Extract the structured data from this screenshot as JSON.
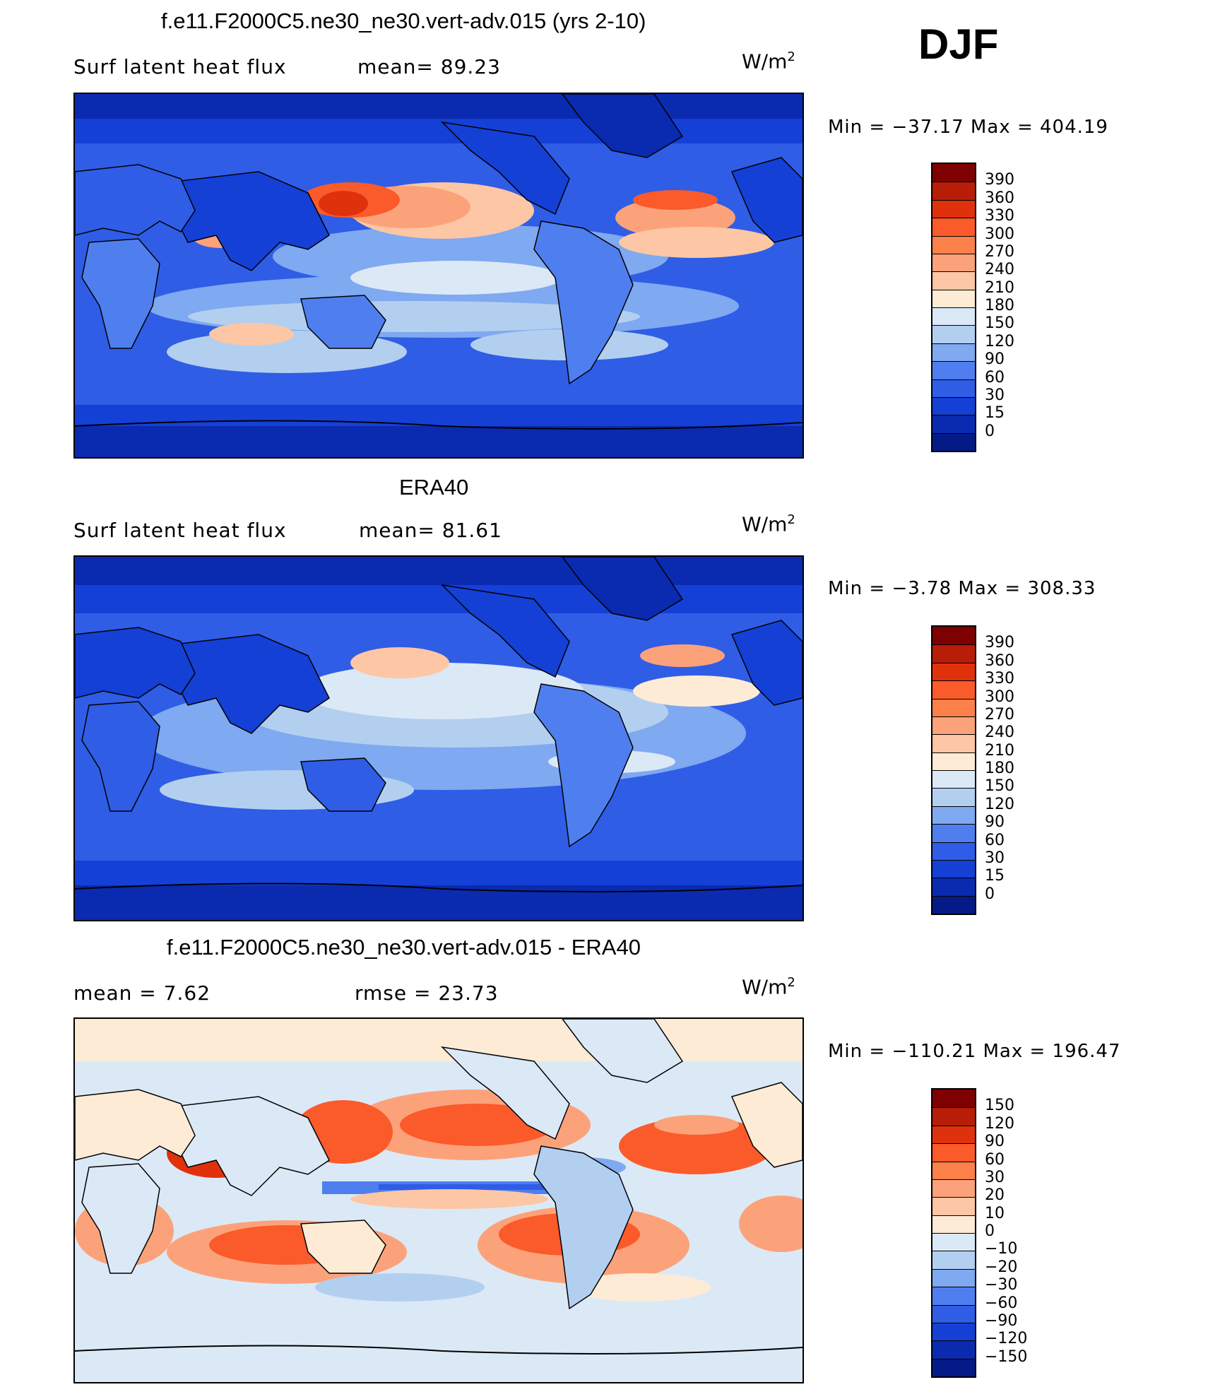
{
  "season": "DJF",
  "panels": [
    {
      "id": "model",
      "title": "f.e11.F2000C5.ne30_ne30.vert-adv.015 (yrs 2-10)",
      "left_text": "Surf latent heat flux",
      "middle_text": "mean=  89.23",
      "units_base": "W/m",
      "units_exp": "2",
      "minmax": "Min = −37.17 Max = 404.19",
      "colorbar_labels": [
        "390",
        "360",
        "330",
        "300",
        "270",
        "240",
        "210",
        "180",
        "150",
        "120",
        "90",
        "60",
        "30",
        "15",
        "0"
      ],
      "colorbar_colors": [
        "#7f0000",
        "#b81d08",
        "#e0310d",
        "#fb5a2a",
        "#fc8049",
        "#fca27a",
        "#fdc6a4",
        "#feebd6",
        "#dbe9f6",
        "#b3cff0",
        "#7fa9f0",
        "#4f7fef",
        "#2f5de6",
        "#1440d6",
        "#0a2ab0",
        "#041a86"
      ],
      "mean_value": 89.23,
      "min_value": -37.17,
      "max_value": 404.19
    },
    {
      "id": "obs",
      "title": "ERA40",
      "left_text": "Surf latent heat flux",
      "middle_text": "mean=  81.61",
      "units_base": "W/m",
      "units_exp": "2",
      "minmax": "Min =  −3.78 Max = 308.33",
      "colorbar_labels": [
        "390",
        "360",
        "330",
        "300",
        "270",
        "240",
        "210",
        "180",
        "150",
        "120",
        "90",
        "60",
        "30",
        "15",
        "0"
      ],
      "colorbar_colors": [
        "#7f0000",
        "#b81d08",
        "#e0310d",
        "#fb5a2a",
        "#fc8049",
        "#fca27a",
        "#fdc6a4",
        "#feebd6",
        "#dbe9f6",
        "#b3cff0",
        "#7fa9f0",
        "#4f7fef",
        "#2f5de6",
        "#1440d6",
        "#0a2ab0",
        "#041a86"
      ],
      "mean_value": 81.61,
      "min_value": -3.78,
      "max_value": 308.33
    },
    {
      "id": "diff",
      "title": "f.e11.F2000C5.ne30_ne30.vert-adv.015 - ERA40",
      "left_text": "mean =    7.62",
      "middle_text": "rmse =   23.73",
      "units_base": "W/m",
      "units_exp": "2",
      "minmax": "Min = −110.21 Max = 196.47",
      "colorbar_labels": [
        "150",
        "120",
        "90",
        "60",
        "30",
        "20",
        "10",
        "0",
        "−10",
        "−20",
        "−30",
        "−60",
        "−90",
        "−120",
        "−150"
      ],
      "colorbar_colors": [
        "#7f0000",
        "#b81d08",
        "#e0310d",
        "#fb5a2a",
        "#fc8049",
        "#fca27a",
        "#fdc6a4",
        "#feebd6",
        "#dbe9f6",
        "#b3cff0",
        "#7fa9f0",
        "#4f7fef",
        "#2f5de6",
        "#1440d6",
        "#0a2ab0",
        "#041a86"
      ],
      "mean_value": 7.62,
      "rmse_value": 23.73,
      "min_value": -110.21,
      "max_value": 196.47
    }
  ]
}
